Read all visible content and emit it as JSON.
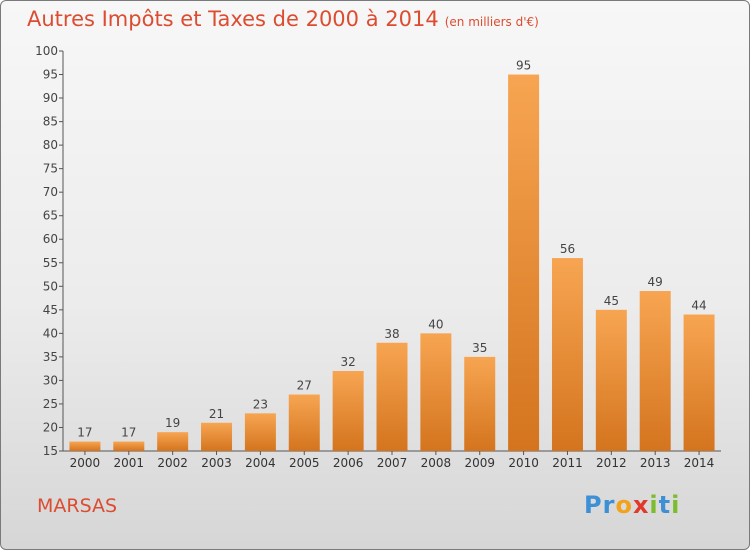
{
  "chart_data": {
    "type": "bar",
    "title": "Autres Impôts et Taxes de 2000 à 2014",
    "subtitle": "(en milliers d'€)",
    "categories": [
      "2000",
      "2001",
      "2002",
      "2003",
      "2004",
      "2005",
      "2006",
      "2007",
      "2008",
      "2009",
      "2010",
      "2011",
      "2012",
      "2013",
      "2014"
    ],
    "values": [
      17,
      17,
      19,
      21,
      23,
      27,
      32,
      38,
      40,
      35,
      95,
      56,
      45,
      49,
      44
    ],
    "ylim": [
      15,
      100
    ],
    "yticks": [
      15,
      20,
      25,
      30,
      35,
      40,
      45,
      50,
      55,
      60,
      65,
      70,
      75,
      80,
      85,
      90,
      95,
      100
    ],
    "xlabel": "",
    "ylabel": "",
    "grid": false,
    "colors": {
      "bar_light": "#f7a552",
      "bar_dark": "#d4741e",
      "title": "#dc4c30"
    }
  },
  "commune": "MARSAS",
  "logo": {
    "letters": [
      "P",
      "r",
      "o",
      "x",
      "i",
      "t",
      "i"
    ],
    "colors": [
      "#3d8fd6",
      "#3d8fd6",
      "#f2a21b",
      "#e03a2a",
      "#7bbd2d",
      "#3d8fd6",
      "#7bbd2d"
    ]
  }
}
